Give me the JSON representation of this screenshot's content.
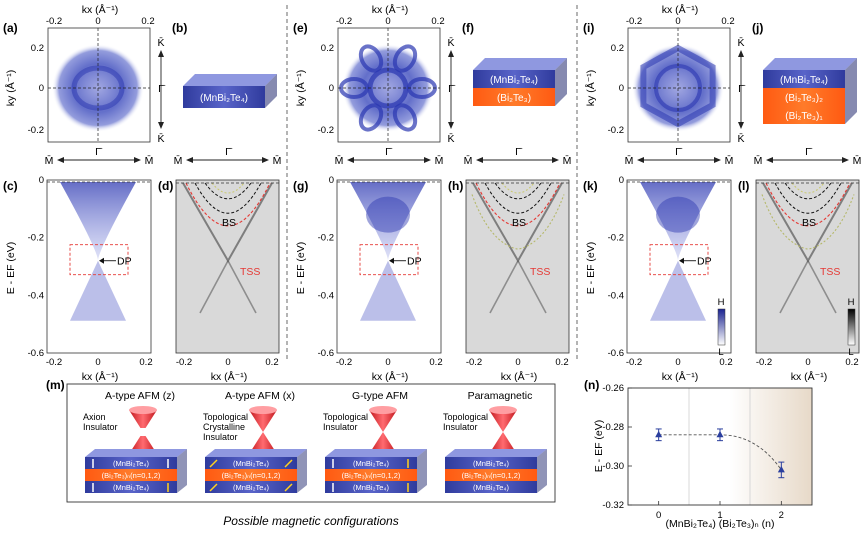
{
  "panel_labels": [
    "(a)",
    "(b)",
    "(c)",
    "(d)",
    "(e)",
    "(f)",
    "(g)",
    "(h)",
    "(i)",
    "(j)",
    "(k)",
    "(l)",
    "(m)",
    "(n)"
  ],
  "fs_axes": {
    "kx_label": "kx (Å⁻¹)",
    "ky_label": "ky (Å⁻¹)",
    "kx_ticks": [
      "-0.2",
      "0",
      "0.2"
    ],
    "ky_ticks": [
      "0.2",
      "0",
      "-0.2"
    ],
    "K": "K̄",
    "G": "Γ̄"
  },
  "band_axes": {
    "energy_label": "E - EF (eV)",
    "energy_ticks": [
      "0",
      "-0.2",
      "-0.4",
      "-0.6"
    ],
    "kx_ticks": [
      "-0.2",
      "0",
      "0.2"
    ],
    "kx_label": "kx (Å⁻¹)",
    "M": "M̄",
    "G": "Γ̄"
  },
  "band_labels": {
    "DP": "DP",
    "BS": "BS",
    "TSS": "TSS"
  },
  "colorbar": {
    "H": "H",
    "L": "L"
  },
  "slabs": {
    "b": [
      "(MnBi₂Te₄)"
    ],
    "f": [
      "(MnBi₂Te₄)",
      "(Bi₂Te₃)"
    ],
    "j": [
      "(MnBi₂Te₄)",
      "(Bi₂Te₃)₂",
      "(Bi₂Te₃)₁"
    ]
  },
  "config_panel": {
    "caption": "Possible magnetic configurations",
    "configs": [
      {
        "title": "A-type AFM (z)",
        "phase": [
          "Axion",
          "Insulator"
        ]
      },
      {
        "title": "A-type AFM (x)",
        "phase": [
          "Topological",
          "Crystalline",
          "Insulator"
        ]
      },
      {
        "title": "G-type AFM",
        "phase": [
          "Topological",
          "Insulator"
        ]
      },
      {
        "title": "Paramagnetic",
        "phase": [
          "Topological",
          "Insulator"
        ]
      }
    ],
    "layer_top": "(MnBi₂Te₄)",
    "layer_mid": "(Bi₂Te₃)ₙ(n=0,1,2)",
    "layer_bot": "(MnBi₂Te₄)"
  },
  "chart_data": {
    "type": "scatter",
    "title": "",
    "xlabel": "(MnBi₂Te₄) (Bi₂Te₃)ₙ (n)",
    "ylabel": "E - EF (eV)",
    "x": [
      0,
      1,
      2
    ],
    "y": [
      -0.284,
      -0.284,
      -0.302
    ],
    "yerr": [
      0.003,
      0.003,
      0.004
    ],
    "xlim": [
      -0.5,
      2.5
    ],
    "ylim": [
      -0.32,
      -0.26
    ],
    "x_ticks": [
      "0",
      "1",
      "2"
    ],
    "y_ticks": [
      "-0.26",
      "-0.28",
      "-0.30",
      "-0.32"
    ],
    "marker_color": "#2b3f9e",
    "trend_line": "dashed",
    "grid": false
  }
}
